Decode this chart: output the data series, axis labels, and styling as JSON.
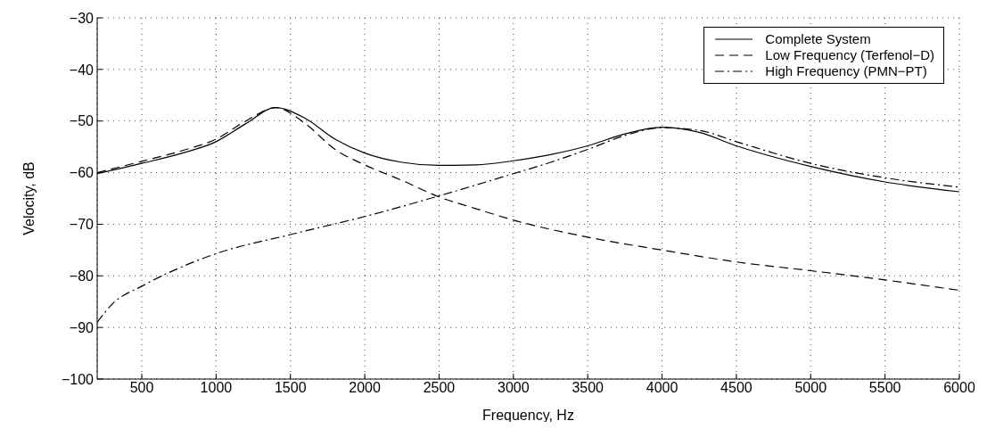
{
  "chart_data": {
    "type": "line",
    "xlabel": "Frequency, Hz",
    "ylabel": "Velocity, dB",
    "xlim": [
      200,
      6000
    ],
    "xticks": [
      500,
      1000,
      1500,
      2000,
      2500,
      3000,
      3500,
      4000,
      4500,
      5000,
      5500,
      6000
    ],
    "ylim": [
      -100,
      -30
    ],
    "yticks": [
      -100,
      -90,
      -80,
      -70,
      -60,
      -50,
      -40,
      -30
    ],
    "grid": true,
    "legend": "top right",
    "marker": "none",
    "series": [
      {
        "name": "Complete System",
        "color": "#000000",
        "line_style": "solid",
        "x": [
          200,
          500,
          800,
          1000,
          1200,
          1400,
          1600,
          1800,
          2000,
          2250,
          2500,
          2750,
          3000,
          3250,
          3500,
          3750,
          4000,
          4250,
          4500,
          5000,
          5500,
          6000
        ],
        "values": [
          -60.2,
          -58.2,
          -56,
          -54,
          -50.5,
          -47.4,
          -49.5,
          -53.5,
          -56.2,
          -58,
          -58.6,
          -58.5,
          -57.7,
          -56.5,
          -54.8,
          -52.5,
          -51.2,
          -52.2,
          -54.8,
          -58.8,
          -61.8,
          -63.7
        ]
      },
      {
        "name": "Low Frequency (Terfenol−D)",
        "color": "#000000",
        "line_style": "dashed",
        "x": [
          200,
          500,
          800,
          1000,
          1200,
          1400,
          1600,
          1800,
          2000,
          2250,
          2500,
          2750,
          3000,
          3500,
          4000,
          4500,
          5000,
          5500,
          6000
        ],
        "values": [
          -60,
          -57.8,
          -55.5,
          -53.5,
          -50,
          -47.4,
          -50.5,
          -55.5,
          -58.5,
          -61.5,
          -64.7,
          -67,
          -69.2,
          -72.5,
          -75,
          -77.3,
          -79,
          -80.8,
          -82.8
        ]
      },
      {
        "name": "High Frequency (PMN−PT)",
        "color": "#000000",
        "line_style": "dashdot",
        "x": [
          200,
          300,
          500,
          750,
          1000,
          1500,
          2000,
          2500,
          3000,
          3250,
          3500,
          3750,
          4000,
          4250,
          4500,
          5000,
          5500,
          6000
        ],
        "values": [
          -89,
          -85.5,
          -82,
          -78.5,
          -75.7,
          -72,
          -68.5,
          -64.5,
          -60.2,
          -58,
          -55.5,
          -52.8,
          -51.3,
          -51.8,
          -54,
          -58.2,
          -61,
          -62.8
        ]
      }
    ]
  }
}
